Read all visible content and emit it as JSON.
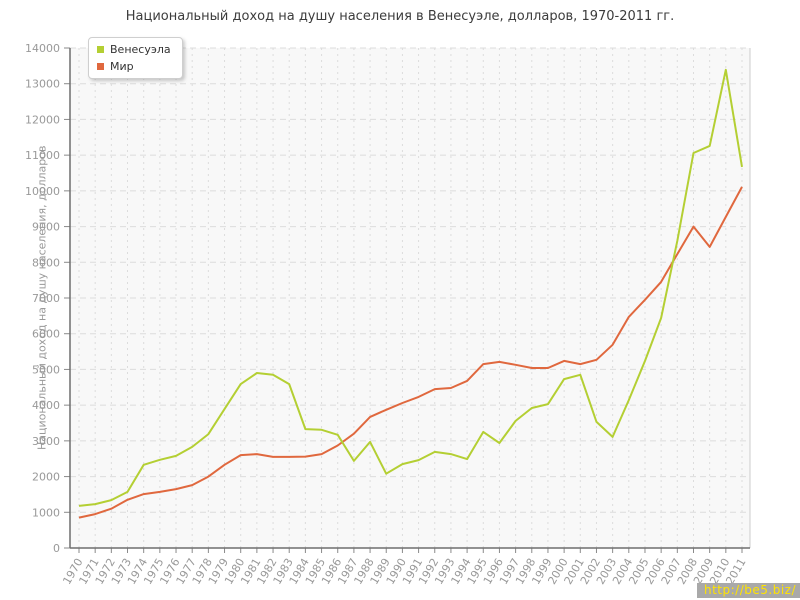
{
  "title": "Национальный доход на душу населения в Венесуэле, долларов, 1970-2011 гг.",
  "watermark": "http://be5.biz/",
  "chart_data": {
    "type": "line",
    "title": "Национальный доход на душу населения в Венесуэле, долларов, 1970-2011 гг.",
    "xlabel": "",
    "ylabel": "Национальный доход на душу населения, долларов",
    "ylim": [
      0,
      14000
    ],
    "ytick_step": 1000,
    "grid": true,
    "legend_position": "top-left",
    "x": [
      1970,
      1971,
      1972,
      1973,
      1974,
      1975,
      1976,
      1977,
      1978,
      1979,
      1980,
      1981,
      1982,
      1983,
      1984,
      1985,
      1986,
      1987,
      1988,
      1989,
      1990,
      1991,
      1992,
      1993,
      1994,
      1995,
      1996,
      1997,
      1998,
      1999,
      2000,
      2001,
      2002,
      2003,
      2004,
      2005,
      2006,
      2007,
      2008,
      2009,
      2010,
      2011
    ],
    "series": [
      {
        "name": "Венесуэла",
        "color": "#b4cf33",
        "values": [
          1180,
          1230,
          1340,
          1570,
          2330,
          2470,
          2580,
          2830,
          3190,
          3890,
          4590,
          4900,
          4850,
          4590,
          3330,
          3310,
          3170,
          2440,
          2970,
          2080,
          2350,
          2460,
          2690,
          2630,
          2490,
          3250,
          2940,
          3560,
          3920,
          4030,
          4730,
          4850,
          3530,
          3110,
          4140,
          5240,
          6440,
          8600,
          11060,
          11260,
          13390,
          10670
        ]
      },
      {
        "name": "Мир",
        "color": "#e0683e",
        "values": [
          850,
          950,
          1100,
          1350,
          1510,
          1570,
          1650,
          1760,
          2000,
          2330,
          2600,
          2630,
          2550,
          2550,
          2560,
          2630,
          2870,
          3200,
          3670,
          3870,
          4060,
          4230,
          4450,
          4480,
          4680,
          5150,
          5210,
          5130,
          5040,
          5040,
          5240,
          5150,
          5270,
          5690,
          6470,
          6950,
          7450,
          8230,
          9000,
          8430,
          9270,
          10110
        ]
      }
    ]
  },
  "style": {
    "plot_bg": "#f8f8f8",
    "gridline_color": "#dcdcdc",
    "axis_color": "#6e6e6e",
    "tick_color": "#8a8a8a",
    "tick_label_color": "#999999"
  }
}
